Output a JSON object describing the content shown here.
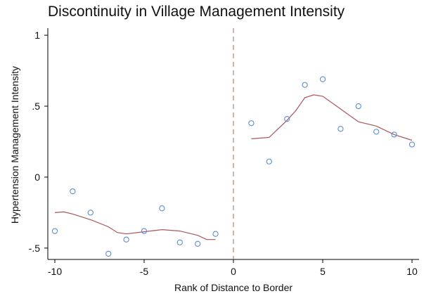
{
  "chart_data": {
    "type": "scatter",
    "title": "Discontinuity in Village Management Intensity",
    "xlabel": "Rank of Distance to Border",
    "ylabel": "Hypertension Management Intensity",
    "xlim": [
      -10,
      10
    ],
    "ylim": [
      -0.58,
      1.05
    ],
    "xticks": [
      {
        "value": -10,
        "label": "-10"
      },
      {
        "value": -5,
        "label": "-5"
      },
      {
        "value": 0,
        "label": "0"
      },
      {
        "value": 5,
        "label": "5"
      },
      {
        "value": 10,
        "label": "10"
      }
    ],
    "yticks": [
      {
        "value": 1,
        "label": "1"
      },
      {
        "value": 0.5,
        "label": ".5"
      },
      {
        "value": 0,
        "label": "0"
      },
      {
        "value": -0.5,
        "label": "-.5"
      }
    ],
    "cutoff": 0,
    "grid": false,
    "legend": "none",
    "colors": {
      "points": "#5b8ed6",
      "fit": "#a9565b",
      "cutoff": "#c07a80",
      "axis": "#000000"
    },
    "series": [
      {
        "type": "scatter",
        "side": "left",
        "x": [
          -10,
          -9,
          -8,
          -7,
          -6,
          -5,
          -4,
          -3,
          -2,
          -1
        ],
        "y": [
          -0.38,
          -0.1,
          -0.25,
          -0.54,
          -0.44,
          -0.38,
          -0.22,
          -0.46,
          -0.47,
          -0.4
        ]
      },
      {
        "type": "scatter",
        "side": "right",
        "x": [
          1,
          2,
          3,
          4,
          5,
          6,
          7,
          8,
          9,
          10
        ],
        "y": [
          0.38,
          0.11,
          0.41,
          0.65,
          0.69,
          0.34,
          0.5,
          0.32,
          0.3,
          0.23
        ]
      },
      {
        "type": "line",
        "side": "left",
        "x": [
          -10,
          -9.5,
          -9,
          -8,
          -7,
          -6.5,
          -6,
          -5,
          -4,
          -3,
          -2,
          -1.5,
          -1
        ],
        "y": [
          -0.25,
          -0.245,
          -0.26,
          -0.3,
          -0.35,
          -0.39,
          -0.4,
          -0.385,
          -0.37,
          -0.38,
          -0.41,
          -0.44,
          -0.44
        ]
      },
      {
        "type": "line",
        "side": "right",
        "x": [
          1,
          2,
          3,
          3.5,
          4,
          4.5,
          5,
          6,
          7,
          8,
          9,
          10
        ],
        "y": [
          0.27,
          0.28,
          0.4,
          0.47,
          0.56,
          0.58,
          0.57,
          0.48,
          0.39,
          0.36,
          0.3,
          0.26
        ]
      }
    ]
  }
}
